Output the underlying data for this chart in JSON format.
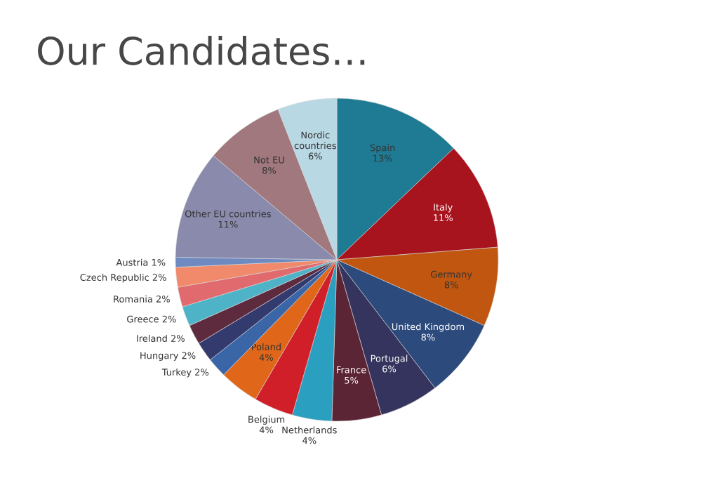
{
  "chart_data": {
    "type": "pie",
    "title": "Our Candidates…",
    "categories": [
      "Spain",
      "Italy",
      "Germany",
      "United Kingdom",
      "Portugal",
      "France",
      "Netherlands",
      "Belgium",
      "Poland",
      "Turkey",
      "Hungary",
      "Ireland",
      "Greece",
      "Romania",
      "Czech Republic",
      "Austria",
      "Other EU countries",
      "Not EU",
      "Nordic countries"
    ],
    "values": [
      13,
      11,
      8,
      8,
      6,
      5,
      4,
      4,
      4,
      2,
      2,
      2,
      2,
      2,
      2,
      1,
      11,
      8,
      6
    ],
    "value_labels": [
      "13%",
      "11%",
      "8%",
      "8%",
      "6%",
      "5%",
      "4%",
      "4%",
      "4%",
      "2%",
      "2%",
      "2%",
      "2%",
      "2%",
      "2%",
      "1%",
      "11%",
      "8%",
      "6%"
    ],
    "colors": [
      "#1f7a93",
      "#a8141e",
      "#c0560f",
      "#2c4a7c",
      "#35345e",
      "#5c2535",
      "#2a9fbf",
      "#d01f28",
      "#e0661a",
      "#3a66a8",
      "#333a6e",
      "#5e2a3e",
      "#4fb3c8",
      "#e06a6e",
      "#f08a6a",
      "#6f8ac0",
      "#8a8aad",
      "#a0787e",
      "#b8d8e4"
    ]
  }
}
